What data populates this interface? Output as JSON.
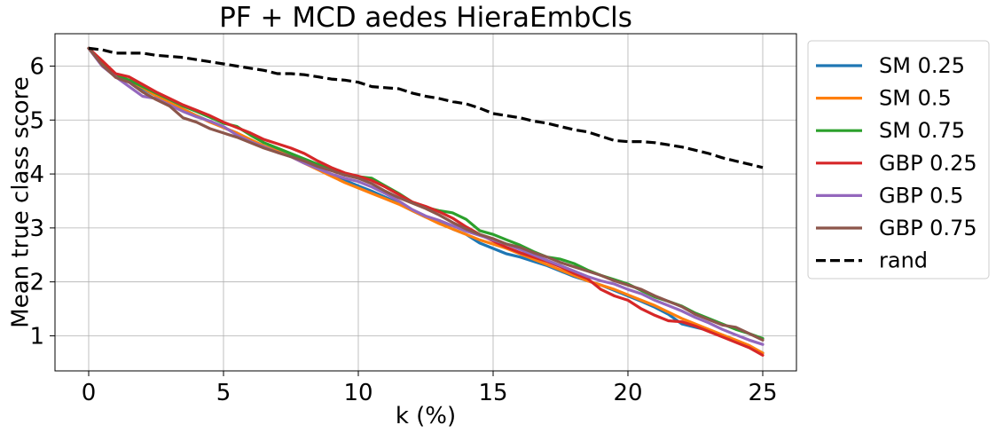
{
  "chart_data": {
    "type": "line",
    "title": "PF + MCD aedes HieraEmbCls",
    "xlabel": "k (%)",
    "ylabel": "Mean true class score",
    "xlim": [
      -1.25,
      26.25
    ],
    "ylim": [
      0.35,
      6.6
    ],
    "xticks": [
      "0",
      "5",
      "10",
      "15",
      "20",
      "25"
    ],
    "yticks": [
      "1",
      "2",
      "3",
      "4",
      "5",
      "6"
    ],
    "grid": true,
    "legend_position": "outside-right",
    "x": [
      0,
      0.5,
      1,
      1.5,
      2,
      2.5,
      3,
      3.5,
      4,
      4.5,
      5,
      5.5,
      6,
      6.5,
      7,
      7.5,
      8,
      8.5,
      9,
      9.5,
      10,
      10.5,
      11,
      11.5,
      12,
      12.5,
      13,
      13.5,
      14,
      14.5,
      15,
      15.5,
      16,
      16.5,
      17,
      17.5,
      18,
      18.5,
      19,
      19.5,
      20,
      20.5,
      21,
      21.5,
      22,
      22.5,
      23,
      23.5,
      24,
      24.5,
      25
    ],
    "series": [
      {
        "name": "SM 0.25",
        "color": "#1f77b4",
        "style": "solid",
        "values": [
          6.33,
          6.05,
          5.82,
          5.72,
          5.58,
          5.45,
          5.32,
          5.2,
          5.08,
          4.97,
          4.86,
          4.76,
          4.63,
          4.52,
          4.43,
          4.34,
          4.22,
          4.1,
          3.98,
          3.88,
          3.78,
          3.68,
          3.57,
          3.45,
          3.32,
          3.2,
          3.1,
          2.98,
          2.88,
          2.72,
          2.62,
          2.52,
          2.46,
          2.38,
          2.3,
          2.2,
          2.1,
          2.02,
          1.94,
          1.84,
          1.74,
          1.64,
          1.53,
          1.4,
          1.22,
          1.16,
          1.1,
          1.0,
          0.9,
          0.79,
          0.68
        ]
      },
      {
        "name": "SM 0.5",
        "color": "#ff7f0e",
        "style": "solid",
        "values": [
          6.33,
          6.05,
          5.82,
          5.74,
          5.6,
          5.45,
          5.32,
          5.2,
          5.08,
          4.96,
          4.86,
          4.76,
          4.64,
          4.52,
          4.42,
          4.32,
          4.2,
          4.08,
          3.96,
          3.84,
          3.74,
          3.64,
          3.54,
          3.44,
          3.32,
          3.2,
          3.08,
          2.98,
          2.88,
          2.78,
          2.7,
          2.62,
          2.52,
          2.42,
          2.32,
          2.22,
          2.12,
          2.02,
          1.94,
          1.86,
          1.76,
          1.66,
          1.56,
          1.44,
          1.32,
          1.22,
          1.12,
          1.02,
          0.92,
          0.82,
          0.68
        ]
      },
      {
        "name": "SM 0.75",
        "color": "#2ca02c",
        "style": "solid",
        "values": [
          6.33,
          6.08,
          5.84,
          5.74,
          5.62,
          5.5,
          5.38,
          5.26,
          5.16,
          5.05,
          4.94,
          4.88,
          4.72,
          4.58,
          4.48,
          4.38,
          4.28,
          4.18,
          4.08,
          3.98,
          3.95,
          3.92,
          3.78,
          3.64,
          3.48,
          3.38,
          3.32,
          3.28,
          3.16,
          2.95,
          2.88,
          2.78,
          2.68,
          2.56,
          2.46,
          2.42,
          2.34,
          2.22,
          2.12,
          2.04,
          1.96,
          1.84,
          1.72,
          1.64,
          1.55,
          1.42,
          1.32,
          1.22,
          1.12,
          1.04,
          0.95
        ]
      },
      {
        "name": "GBP 0.25",
        "color": "#d62728",
        "style": "solid",
        "values": [
          6.33,
          6.1,
          5.86,
          5.8,
          5.66,
          5.52,
          5.4,
          5.28,
          5.18,
          5.08,
          4.96,
          4.86,
          4.76,
          4.64,
          4.56,
          4.48,
          4.38,
          4.24,
          4.12,
          4.02,
          3.96,
          3.88,
          3.76,
          3.62,
          3.48,
          3.4,
          3.3,
          3.18,
          3.02,
          2.88,
          2.76,
          2.64,
          2.54,
          2.46,
          2.38,
          2.28,
          2.16,
          2.06,
          1.86,
          1.74,
          1.66,
          1.5,
          1.38,
          1.28,
          1.26,
          1.18,
          1.08,
          0.98,
          0.88,
          0.78,
          0.64
        ]
      },
      {
        "name": "GBP 0.5",
        "color": "#9467bd",
        "style": "solid",
        "values": [
          6.33,
          6.0,
          5.8,
          5.62,
          5.44,
          5.4,
          5.28,
          5.16,
          5.06,
          4.98,
          4.88,
          4.72,
          4.6,
          4.5,
          4.4,
          4.32,
          4.2,
          4.1,
          4.0,
          3.92,
          3.86,
          3.76,
          3.64,
          3.5,
          3.34,
          3.22,
          3.14,
          3.04,
          2.94,
          2.86,
          2.78,
          2.7,
          2.6,
          2.5,
          2.4,
          2.3,
          2.2,
          2.1,
          2.02,
          1.96,
          1.86,
          1.78,
          1.66,
          1.56,
          1.46,
          1.34,
          1.24,
          1.12,
          1.02,
          0.92,
          0.84
        ]
      },
      {
        "name": "GBP 0.75",
        "color": "#8c564b",
        "style": "solid",
        "values": [
          6.33,
          6.02,
          5.79,
          5.7,
          5.52,
          5.38,
          5.26,
          5.04,
          4.96,
          4.84,
          4.76,
          4.68,
          4.58,
          4.48,
          4.4,
          4.32,
          4.24,
          4.14,
          4.06,
          3.98,
          3.92,
          3.82,
          3.68,
          3.56,
          3.46,
          3.36,
          3.24,
          3.1,
          2.98,
          2.88,
          2.8,
          2.7,
          2.64,
          2.54,
          2.46,
          2.36,
          2.28,
          2.2,
          2.12,
          2.02,
          1.94,
          1.86,
          1.74,
          1.64,
          1.54,
          1.4,
          1.3,
          1.2,
          1.16,
          1.04,
          0.92
        ]
      },
      {
        "name": "rand",
        "color": "#000000",
        "style": "dashed",
        "values": [
          6.33,
          6.3,
          6.24,
          6.24,
          6.24,
          6.2,
          6.18,
          6.16,
          6.12,
          6.08,
          6.04,
          6.0,
          5.96,
          5.92,
          5.86,
          5.86,
          5.84,
          5.8,
          5.76,
          5.74,
          5.7,
          5.62,
          5.6,
          5.58,
          5.5,
          5.44,
          5.4,
          5.34,
          5.3,
          5.22,
          5.12,
          5.08,
          5.04,
          4.98,
          4.94,
          4.88,
          4.82,
          4.78,
          4.7,
          4.62,
          4.6,
          4.6,
          4.58,
          4.54,
          4.5,
          4.44,
          4.38,
          4.3,
          4.24,
          4.18,
          4.12
        ]
      }
    ]
  }
}
